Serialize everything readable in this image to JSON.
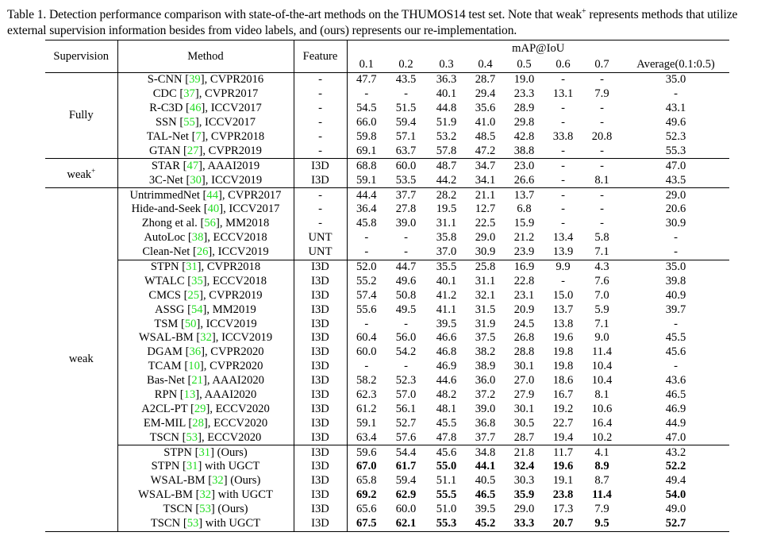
{
  "caption": {
    "label": "Table 1.",
    "text_before": "Detection performance comparison with state-of-the-art methods on the THUMOS14 test set. Note that weak",
    "sup": "+",
    "text_after": " represents methods that utilize external supervision information besides from video labels, and (ours) represents our re-implementation."
  },
  "header": {
    "supervision": "Supervision",
    "method": "Method",
    "feature": "Feature",
    "map": "mAP@IoU",
    "thresholds": [
      "0.1",
      "0.2",
      "0.3",
      "0.4",
      "0.5",
      "0.6",
      "0.7",
      "Average(0.1:0.5)"
    ]
  },
  "colors": {
    "ref": "#22dd22"
  },
  "groups": [
    {
      "supervision": "Fully",
      "sup": "",
      "subsections": [
        [
          {
            "name": "S-CNN",
            "ref": "39",
            "suffix": ", CVPR2016",
            "feature": "-",
            "values": [
              "47.7",
              "43.5",
              "36.3",
              "28.7",
              "19.0",
              "-",
              "-",
              "35.0"
            ]
          },
          {
            "name": "CDC",
            "ref": "37",
            "suffix": ", CVPR2017",
            "feature": "-",
            "values": [
              "-",
              "-",
              "40.1",
              "29.4",
              "23.3",
              "13.1",
              "7.9",
              "-"
            ]
          },
          {
            "name": "R-C3D",
            "ref": "46",
            "suffix": ", ICCV2017",
            "feature": "-",
            "values": [
              "54.5",
              "51.5",
              "44.8",
              "35.6",
              "28.9",
              "-",
              "-",
              "43.1"
            ]
          },
          {
            "name": "SSN",
            "ref": "55",
            "suffix": ", ICCV2017",
            "feature": "-",
            "values": [
              "66.0",
              "59.4",
              "51.9",
              "41.0",
              "29.8",
              "-",
              "-",
              "49.6"
            ]
          },
          {
            "name": "TAL-Net",
            "ref": "7",
            "suffix": ", CVPR2018",
            "feature": "-",
            "values": [
              "59.8",
              "57.1",
              "53.2",
              "48.5",
              "42.8",
              "33.8",
              "20.8",
              "52.3"
            ]
          },
          {
            "name": "GTAN",
            "ref": "27",
            "suffix": ", CVPR2019",
            "feature": "-",
            "values": [
              "69.1",
              "63.7",
              "57.8",
              "47.2",
              "38.8",
              "-",
              "-",
              "55.3"
            ]
          }
        ]
      ]
    },
    {
      "supervision": "weak",
      "sup": "+",
      "subsections": [
        [
          {
            "name": "STAR",
            "ref": "47",
            "suffix": ", AAAI2019",
            "feature": "I3D",
            "values": [
              "68.8",
              "60.0",
              "48.7",
              "34.7",
              "23.0",
              "-",
              "-",
              "47.0"
            ]
          },
          {
            "name": "3C-Net",
            "ref": "30",
            "suffix": ", ICCV2019",
            "feature": "I3D",
            "values": [
              "59.1",
              "53.5",
              "44.2",
              "34.1",
              "26.6",
              "-",
              "8.1",
              "43.5"
            ]
          }
        ]
      ]
    },
    {
      "supervision": "weak",
      "sup": "",
      "subsections": [
        [
          {
            "name": "UntrimmedNet",
            "ref": "44",
            "suffix": ", CVPR2017",
            "feature": "-",
            "values": [
              "44.4",
              "37.7",
              "28.2",
              "21.1",
              "13.7",
              "-",
              "-",
              "29.0"
            ]
          },
          {
            "name": "Hide-and-Seek",
            "ref": "40",
            "suffix": ", ICCV2017",
            "feature": "-",
            "values": [
              "36.4",
              "27.8",
              "19.5",
              "12.7",
              "6.8",
              "-",
              "-",
              "20.6"
            ]
          },
          {
            "name": "Zhong et al.",
            "ref": "56",
            "suffix": ", MM2018",
            "feature": "-",
            "values": [
              "45.8",
              "39.0",
              "31.1",
              "22.5",
              "15.9",
              "-",
              "-",
              "30.9"
            ]
          },
          {
            "name": "AutoLoc",
            "ref": "38",
            "suffix": ", ECCV2018",
            "feature": "UNT",
            "values": [
              "-",
              "-",
              "35.8",
              "29.0",
              "21.2",
              "13.4",
              "5.8",
              "-"
            ]
          },
          {
            "name": "Clean-Net",
            "ref": "26",
            "suffix": ", ICCV2019",
            "feature": "UNT",
            "values": [
              "-",
              "-",
              "37.0",
              "30.9",
              "23.9",
              "13.9",
              "7.1",
              "-"
            ]
          }
        ],
        [
          {
            "name": "STPN",
            "ref": "31",
            "suffix": ", CVPR2018",
            "feature": "I3D",
            "values": [
              "52.0",
              "44.7",
              "35.5",
              "25.8",
              "16.9",
              "9.9",
              "4.3",
              "35.0"
            ]
          },
          {
            "name": "WTALC",
            "ref": "35",
            "suffix": ", ECCV2018",
            "feature": "I3D",
            "values": [
              "55.2",
              "49.6",
              "40.1",
              "31.1",
              "22.8",
              "-",
              "7.6",
              "39.8"
            ]
          },
          {
            "name": "CMCS",
            "ref": "25",
            "suffix": ", CVPR2019",
            "feature": "I3D",
            "values": [
              "57.4",
              "50.8",
              "41.2",
              "32.1",
              "23.1",
              "15.0",
              "7.0",
              "40.9"
            ]
          },
          {
            "name": "ASSG",
            "ref": "54",
            "suffix": ", MM2019",
            "feature": "I3D",
            "values": [
              "55.6",
              "49.5",
              "41.1",
              "31.5",
              "20.9",
              "13.7",
              "5.9",
              "39.7"
            ]
          },
          {
            "name": "TSM",
            "ref": "50",
            "suffix": ", ICCV2019",
            "feature": "I3D",
            "values": [
              "-",
              "-",
              "39.5",
              "31.9",
              "24.5",
              "13.8",
              "7.1",
              "-"
            ]
          },
          {
            "name": "WSAL-BM",
            "ref": "32",
            "suffix": ", ICCV2019",
            "feature": "I3D",
            "values": [
              "60.4",
              "56.0",
              "46.6",
              "37.5",
              "26.8",
              "19.6",
              "9.0",
              "45.5"
            ]
          },
          {
            "name": "DGAM",
            "ref": "36",
            "suffix": ", CVPR2020",
            "feature": "I3D",
            "values": [
              "60.0",
              "54.2",
              "46.8",
              "38.2",
              "28.8",
              "19.8",
              "11.4",
              "45.6"
            ]
          },
          {
            "name": "TCAM",
            "ref": "10",
            "suffix": ", CVPR2020",
            "feature": "I3D",
            "values": [
              "-",
              "-",
              "46.9",
              "38.9",
              "30.1",
              "19.8",
              "10.4",
              "-"
            ]
          },
          {
            "name": "Bas-Net",
            "ref": "21",
            "suffix": ", AAAI2020",
            "feature": "I3D",
            "values": [
              "58.2",
              "52.3",
              "44.6",
              "36.0",
              "27.0",
              "18.6",
              "10.4",
              "43.6"
            ]
          },
          {
            "name": "RPN",
            "ref": "13",
            "suffix": ", AAAI2020",
            "feature": "I3D",
            "values": [
              "62.3",
              "57.0",
              "48.2",
              "37.2",
              "27.9",
              "16.7",
              "8.1",
              "46.5"
            ]
          },
          {
            "name": "A2CL-PT",
            "ref": "29",
            "suffix": ", ECCV2020",
            "feature": "I3D",
            "values": [
              "61.2",
              "56.1",
              "48.1",
              "39.0",
              "30.1",
              "19.2",
              "10.6",
              "46.9"
            ]
          },
          {
            "name": "EM-MIL",
            "ref": "28",
            "suffix": ", ECCV2020",
            "feature": "I3D",
            "values": [
              "59.1",
              "52.7",
              "45.5",
              "36.8",
              "30.5",
              "22.7",
              "16.4",
              "44.9"
            ]
          },
          {
            "name": "TSCN",
            "ref": "53",
            "suffix": ", ECCV2020",
            "feature": "I3D",
            "values": [
              "63.4",
              "57.6",
              "47.8",
              "37.7",
              "28.7",
              "19.4",
              "10.2",
              "47.0"
            ]
          }
        ],
        [
          {
            "name": "STPN",
            "ref": "31",
            "suffix": " (Ours)",
            "feature": "I3D",
            "values": [
              "59.6",
              "54.4",
              "45.6",
              "34.8",
              "21.8",
              "11.7",
              "4.1",
              "43.2"
            ]
          },
          {
            "name": "STPN",
            "ref": "31",
            "suffix": " with UGCT",
            "feature": "I3D",
            "bold": true,
            "values": [
              "67.0",
              "61.7",
              "55.0",
              "44.1",
              "32.4",
              "19.6",
              "8.9",
              "52.2"
            ]
          },
          {
            "name": "WSAL-BM",
            "ref": "32",
            "suffix": " (Ours)",
            "feature": "I3D",
            "values": [
              "65.8",
              "59.4",
              "51.1",
              "40.5",
              "30.3",
              "19.1",
              "8.7",
              "49.4"
            ]
          },
          {
            "name": "WSAL-BM",
            "ref": "32",
            "suffix": " with UGCT",
            "feature": "I3D",
            "bold": true,
            "values": [
              "69.2",
              "62.9",
              "55.5",
              "46.5",
              "35.9",
              "23.8",
              "11.4",
              "54.0"
            ]
          },
          {
            "name": "TSCN",
            "ref": "53",
            "suffix": " (Ours)",
            "feature": "I3D",
            "values": [
              "65.6",
              "60.0",
              "51.0",
              "39.5",
              "29.0",
              "17.3",
              "7.9",
              "49.0"
            ]
          },
          {
            "name": "TSCN",
            "ref": "53",
            "suffix": " with UGCT",
            "feature": "I3D",
            "bold": true,
            "values": [
              "67.5",
              "62.1",
              "55.3",
              "45.2",
              "33.3",
              "20.7",
              "9.5",
              "52.7"
            ]
          }
        ]
      ]
    }
  ]
}
